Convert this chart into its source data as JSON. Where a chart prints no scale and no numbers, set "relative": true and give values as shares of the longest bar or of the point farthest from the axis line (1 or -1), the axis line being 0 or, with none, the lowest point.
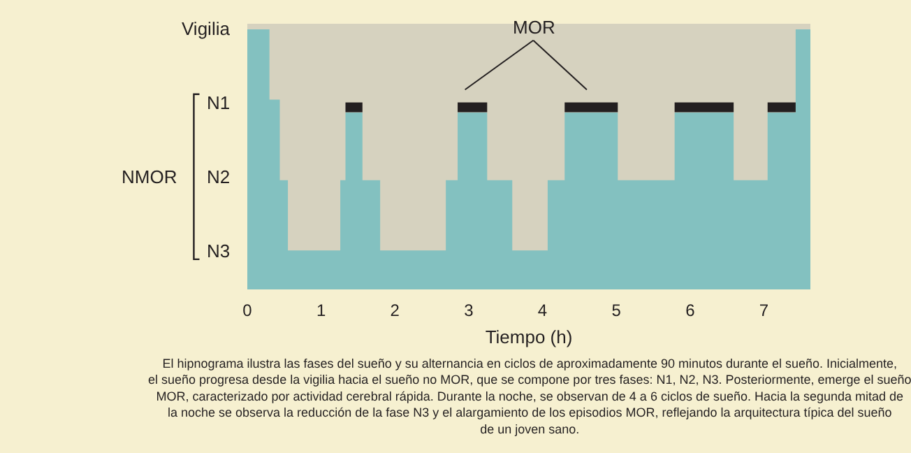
{
  "chart_data": {
    "type": "area",
    "xlabel": "Tiempo (h)",
    "xlim": [
      0,
      7.63
    ],
    "xticks": [
      0,
      1,
      2,
      3,
      4,
      5,
      6,
      7
    ],
    "relative": true,
    "grid": false,
    "series": [
      {
        "color": "#83c1c0",
        "x": [
          0,
          0.3,
          0.44,
          0.55,
          1.26,
          1.33,
          1.56,
          1.8,
          2.69,
          2.85,
          3.25,
          3.59,
          4.07,
          4.3,
          5.02,
          5.79,
          6.59,
          7.05,
          7.43,
          7.63
        ],
        "values": [
          1,
          0.73,
          0.42,
          0.15,
          0.42,
          0.68,
          0.42,
          0.15,
          0.42,
          0.68,
          0.42,
          0.15,
          0.42,
          0.68,
          0.42,
          0.68,
          0.42,
          0.68,
          1,
          1
        ]
      },
      {
        "type": "line",
        "color": "#231f20",
        "x": [
          1.33,
          1.56
        ],
        "values": [
          0.7,
          0.7
        ]
      },
      {
        "type": "line",
        "color": "#231f20",
        "x": [
          2.85,
          3.25
        ],
        "values": [
          0.7,
          0.7
        ]
      },
      {
        "type": "line",
        "color": "#231f20",
        "x": [
          4.3,
          5.02
        ],
        "values": [
          0.7,
          0.7
        ]
      },
      {
        "type": "line",
        "color": "#231f20",
        "x": [
          5.79,
          6.59
        ],
        "values": [
          0.7,
          0.7
        ]
      },
      {
        "type": "line",
        "color": "#231f20",
        "x": [
          7.05,
          7.43
        ],
        "values": [
          0.7,
          0.7
        ]
      }
    ],
    "annotations": [
      "MOR",
      "Vigilia",
      "N1",
      "N2",
      "N3",
      "NMOR",
      "El hipnograma ilustra las fases del sueño y su alternancia en ciclos de aproximadamente 90 minutos durante el sueño. Inicialmente, el sueño progresa desde la vigilia hacia el sueño no MOR, que se compone por tres fases: N1, N2, N3. Posteriormente, emerge el sueño MOR, caracterizado por actividad cerebral rápida. Durante la noche, se observan de 4 a 6 ciclos de sueño. Hacia la segunda mitad de la noche se observa la reducción de la fase N3 y el alargamiento de los episodios MOR, reflejando la arquitectura típica del sueño de un joven sano."
    ]
  }
}
